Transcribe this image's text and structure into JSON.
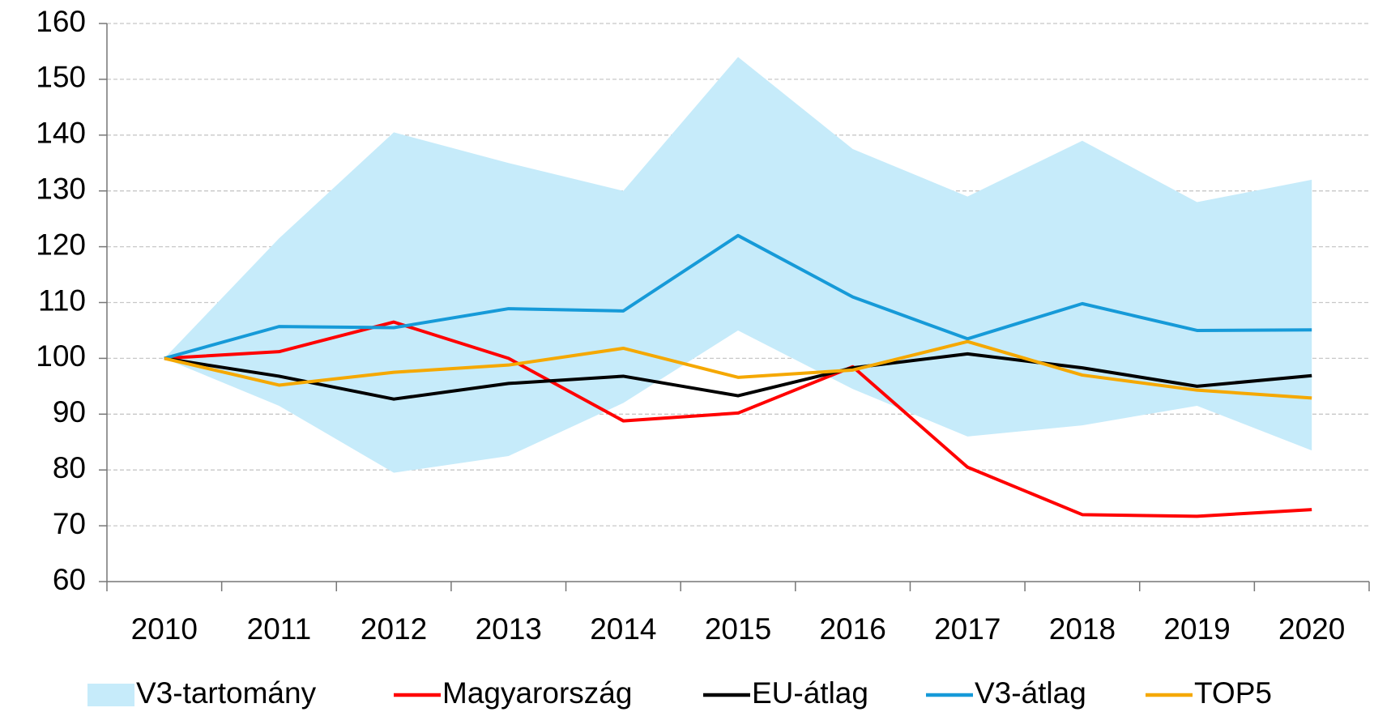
{
  "chart_data": {
    "type": "line",
    "categories": [
      "2010",
      "2011",
      "2012",
      "2013",
      "2014",
      "2015",
      "2016",
      "2017",
      "2018",
      "2019",
      "2020"
    ],
    "series": [
      {
        "name": "V3-tartomány",
        "type": "range",
        "color": "#c6ebfa",
        "low": [
          100,
          91.5,
          79.5,
          82.5,
          92,
          105,
          94.5,
          86,
          88,
          91.5,
          83.5
        ],
        "high": [
          100,
          121.5,
          140.5,
          135,
          130,
          154,
          137.5,
          129,
          139,
          128,
          132
        ]
      },
      {
        "name": "Magyarország",
        "color": "#ff0000",
        "values": [
          100,
          101.2,
          106.5,
          100,
          88.8,
          90.2,
          98.5,
          80.5,
          72,
          71.7,
          72.9
        ]
      },
      {
        "name": "EU-átlag",
        "color": "#000000",
        "values": [
          100,
          96.8,
          92.7,
          95.5,
          96.8,
          93.3,
          98.3,
          100.8,
          98.3,
          95,
          96.9
        ]
      },
      {
        "name": "V3-átlag",
        "color": "#169ad8",
        "values": [
          100,
          105.7,
          105.5,
          108.9,
          108.5,
          122,
          111,
          103.5,
          109.8,
          105,
          105.1
        ]
      },
      {
        "name": "TOP5",
        "color": "#f5a800",
        "values": [
          100,
          95.2,
          97.5,
          98.8,
          101.8,
          96.6,
          97.9,
          103,
          97,
          94.3,
          92.9
        ]
      }
    ],
    "ylim": [
      60,
      160
    ],
    "yticks": [
      60,
      70,
      80,
      90,
      100,
      110,
      120,
      130,
      140,
      150,
      160
    ],
    "grid": true,
    "legend": "bottom"
  }
}
